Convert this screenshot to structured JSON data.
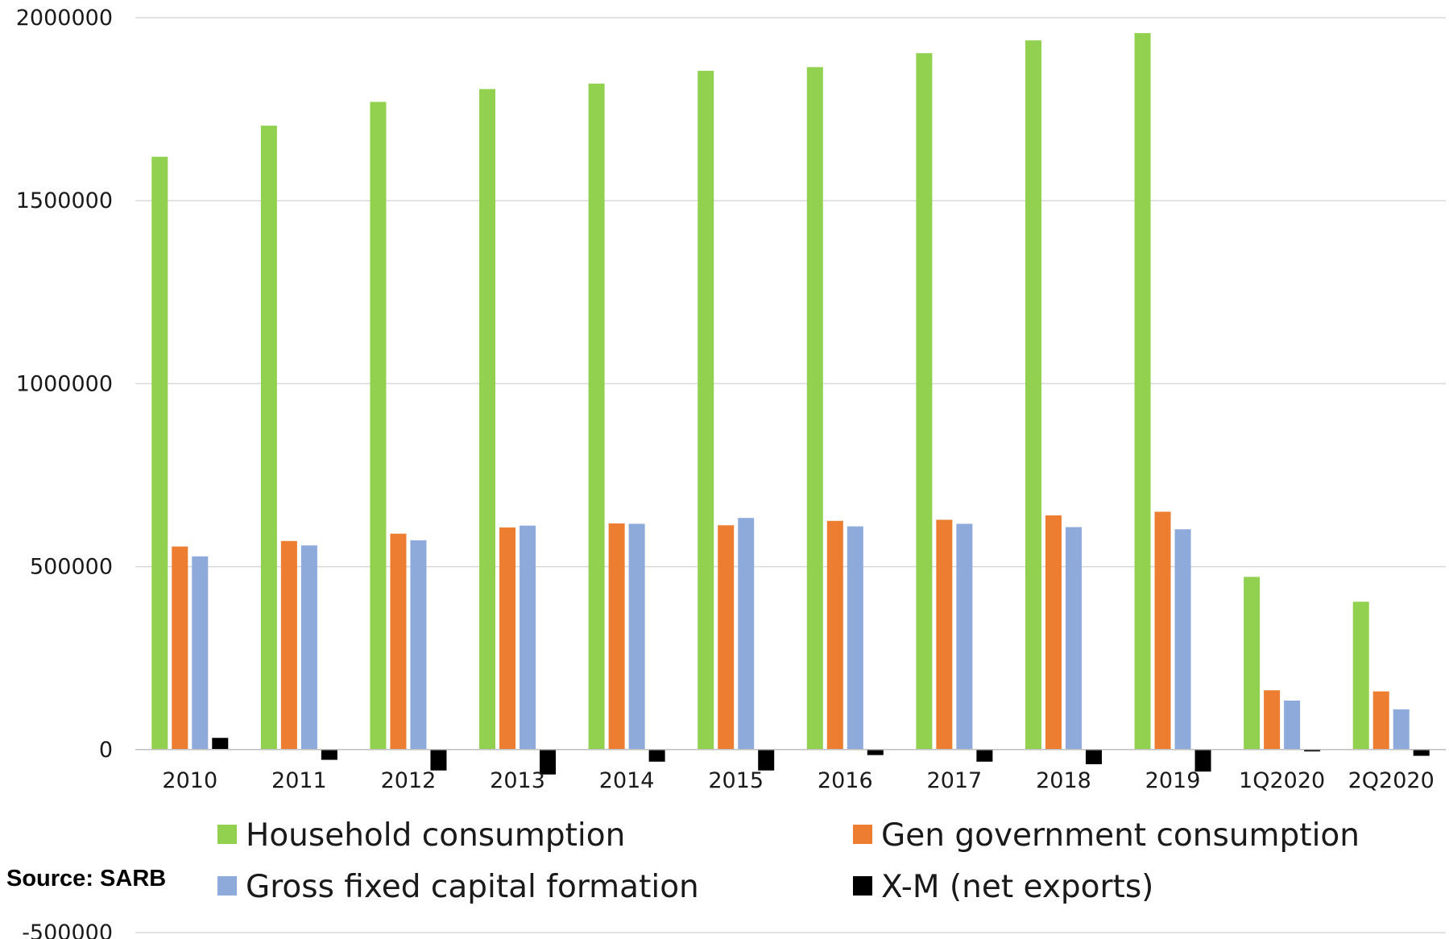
{
  "source": "Source: SARB",
  "chart_data": {
    "type": "bar",
    "categories": [
      "2010",
      "2011",
      "2012",
      "2013",
      "2014",
      "2015",
      "2016",
      "2017",
      "2018",
      "2019",
      "1Q2020",
      "2Q2020"
    ],
    "series": [
      {
        "name": "Household consumption",
        "color": "#92d050",
        "values": [
          1620000,
          1705000,
          1770000,
          1805000,
          1820000,
          1855000,
          1865000,
          1903000,
          1938000,
          1958000,
          472000,
          404000
        ]
      },
      {
        "name": "Gen government consumption",
        "color": "#ed7d31",
        "values": [
          555000,
          570000,
          590000,
          607000,
          618000,
          613000,
          625000,
          628000,
          640000,
          650000,
          162000,
          159000
        ]
      },
      {
        "name": "Gross fixed capital formation",
        "color": "#8eaadb",
        "values": [
          528000,
          558000,
          572000,
          612000,
          617000,
          633000,
          610000,
          617000,
          608000,
          602000,
          134000,
          110000
        ]
      },
      {
        "name": "X-M (net exports)",
        "color": "#000000",
        "values": [
          32000,
          -28000,
          -57000,
          -68000,
          -33000,
          -57000,
          -15000,
          -33000,
          -40000,
          -60000,
          -5000,
          -17000
        ]
      }
    ],
    "yticks": [
      "2000000",
      "1500000",
      "1000000",
      "500000",
      "0",
      "-500000"
    ],
    "ylim": [
      -500000,
      2000000
    ],
    "grid": true,
    "legend_position": "bottom"
  }
}
